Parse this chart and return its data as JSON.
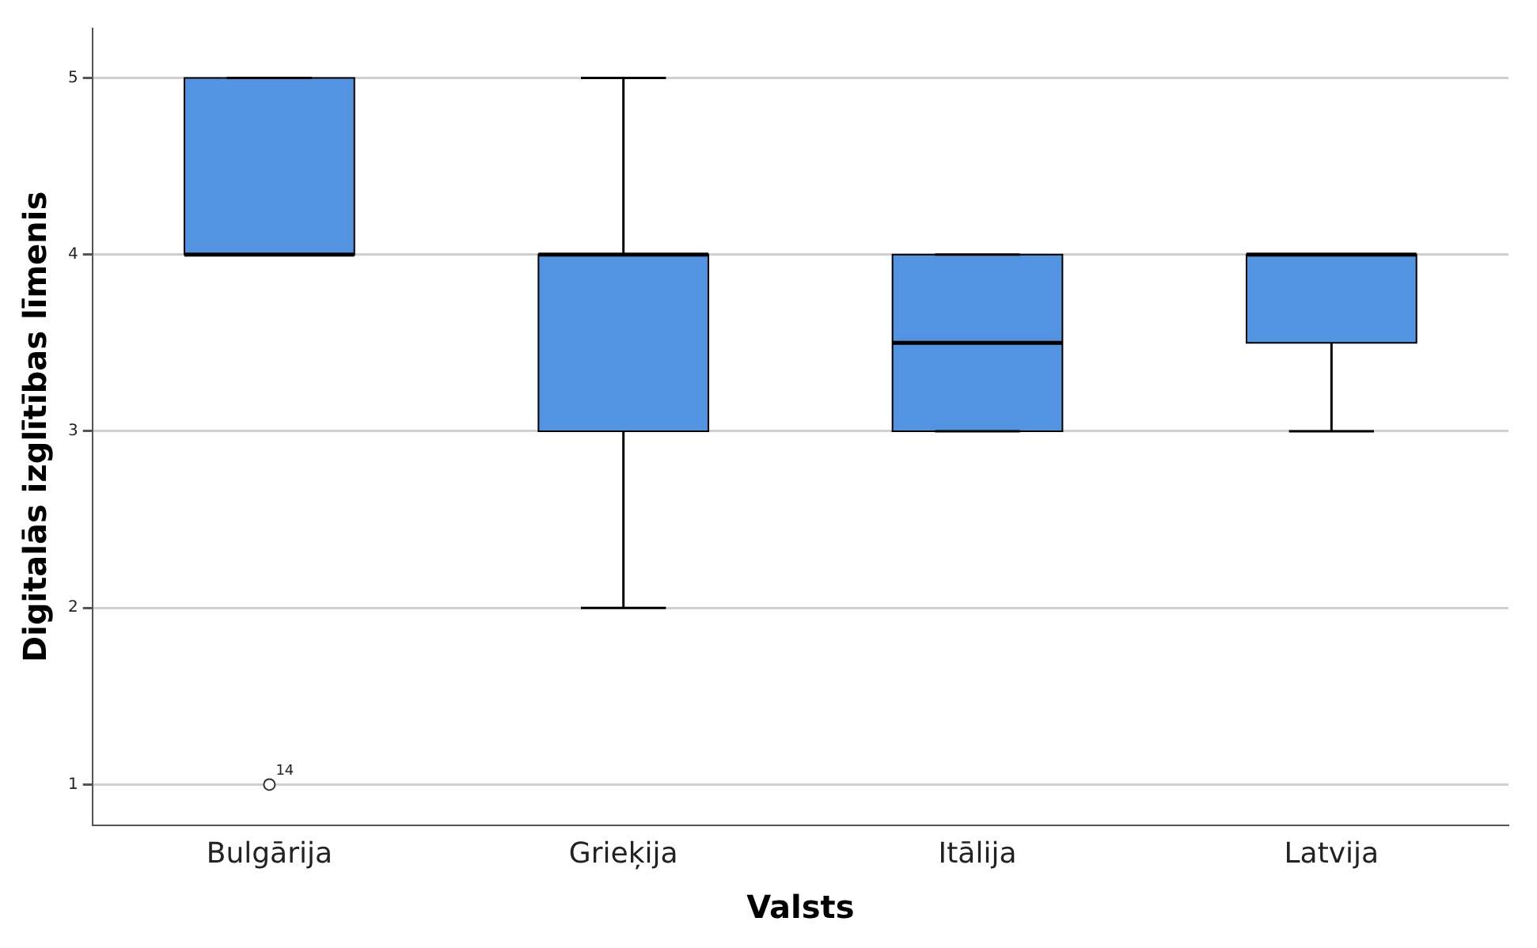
{
  "chart_data": {
    "type": "box",
    "xlabel": "Valsts",
    "ylabel": "Digitalās izglītības līmenis",
    "categories": [
      "Bulgārija",
      "Grieķija",
      "Itālija",
      "Latvija"
    ],
    "series": [
      {
        "color": "#5294e2",
        "boxes": [
          {
            "low": 4,
            "q1": 4,
            "median": 4,
            "q3": 5,
            "high": 5,
            "outliers": [
              1
            ]
          },
          {
            "low": 2,
            "q1": 3,
            "median": 4,
            "q3": 4,
            "high": 5
          },
          {
            "low": 3,
            "q1": 3,
            "median": 3.5,
            "q3": 4,
            "high": 4
          },
          {
            "low": 3,
            "q1": 3.5,
            "median": 4,
            "q3": 4,
            "high": 4
          }
        ]
      }
    ],
    "ylim": [
      0.77,
      5.28
    ],
    "yticks": [
      1,
      2,
      3,
      4,
      5
    ],
    "grid": "y",
    "marker": "circle",
    "annotations": [
      "14"
    ]
  }
}
